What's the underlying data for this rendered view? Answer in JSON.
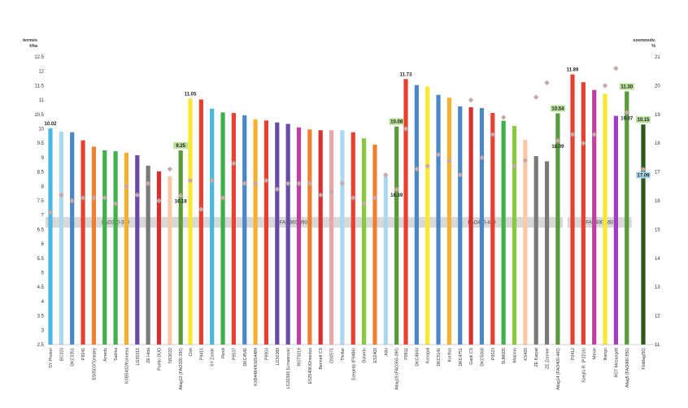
{
  "chart_data": {
    "type": "bar",
    "left_axis": {
      "title_line1": "termés",
      "title_line2": "t/ha",
      "min": 2.5,
      "max": 12.5,
      "step": 0.5
    },
    "right_axis": {
      "title_line1": "szemnedv.",
      "title_line2": "%",
      "min": 11,
      "max": 21,
      "step": 1
    },
    "grid": false,
    "groups": [
      {
        "label": "FAO320-350",
        "categories": [
          "SY Photon",
          "BC323",
          "DKC3351",
          "P9241",
          "ES0503/Tonedey",
          "Anredo",
          "Sabika",
          "KXB5432/Konnesa",
          "LG30315",
          "ZE Hida",
          "Portilo DUO",
          "NS3022",
          "Átlag12 (FAO320-350)"
        ]
      },
      {
        "label": "FAO360-390",
        "categories": [
          "Clok",
          "P9415",
          "SY Zondir",
          "Resili",
          "P9537",
          "DKC4541",
          "KXB4484/KWS4484",
          "P9903",
          "LG30389",
          "LG30369 (Limasrous)",
          "RGT5019",
          "ES2540K/Omentos",
          "Bennett CS",
          "DS0571",
          "Thriller",
          "Szegedy (P9486)",
          "Doberto",
          "ES2409",
          "Alibi",
          "Átlag19 (FAO360-390)"
        ]
      },
      {
        "label": "FAO400-460",
        "categories": [
          "P9911",
          "DKC4943",
          "Konagal",
          "DKC5141",
          "Konflos",
          "DKC4751",
          "Gasti CS",
          "DKC5068",
          "P0023",
          "SUM005",
          "Malomo",
          "KS420",
          "ZE Karpat",
          "ZE Zoomer",
          "Átlag14 (FAO400-460)"
        ]
      },
      {
        "label": "FAO490-550",
        "categories": [
          "P0412",
          "Szegfu R. (P2216)",
          "Mexie",
          "Illango",
          "RGT Mezangett",
          "Átlag5 (FAO490-550)"
        ]
      },
      {
        "label": "",
        "categories": [
          "Főátlag(50)"
        ]
      }
    ],
    "series": [
      {
        "axis": "left",
        "values": [
          [
            10.02,
            9.9,
            9.88,
            9.6,
            9.38,
            9.25,
            9.22,
            9.17,
            9.08,
            8.72,
            8.52,
            8.35,
            9.25
          ],
          [
            11.05,
            11.02,
            10.7,
            10.57,
            10.55,
            10.47,
            10.33,
            10.29,
            10.22,
            10.17,
            10.05,
            9.98,
            9.95,
            9.95,
            9.95,
            9.88,
            9.67,
            9.45,
            8.35,
            10.08
          ],
          [
            11.73,
            11.52,
            11.47,
            11.18,
            11.08,
            10.78,
            10.75,
            10.72,
            10.55,
            10.28,
            10.1,
            9.62,
            9.05,
            8.87,
            10.54
          ],
          [
            11.89,
            11.62,
            11.35,
            11.22,
            10.45,
            11.3
          ],
          [
            10.15
          ]
        ],
        "colors": [
          [
            "#4db8e6",
            "#aad8ee",
            "#4a86c8",
            "#e84030",
            "#f08030",
            "#3fb04a",
            "#3fb04a",
            "#f8b030",
            "#6a4aa8",
            "#7a7a7a",
            "#d83030",
            "#f8c8a8",
            "#5a9a3a"
          ],
          [
            "#f8e830",
            "#e84030",
            "#4ab8d8",
            "#3fb04a",
            "#e84030",
            "#4a86c8",
            "#f8b030",
            "#e84030",
            "#6a4aa8",
            "#6a4aa8",
            "#c040a0",
            "#f08030",
            "#d83030",
            "#e8a8a8",
            "#aad8ee",
            "#e84030",
            "#8ac840",
            "#f08030",
            "#aad8ee",
            "#5a9a3a"
          ],
          [
            "#e84030",
            "#4a86c8",
            "#f8e830",
            "#4a86c8",
            "#f8b030",
            "#4a86c8",
            "#d83030",
            "#4a86c8",
            "#e84030",
            "#3fb04a",
            "#8ac840",
            "#f8c8a8",
            "#7a7a7a",
            "#7a7a7a",
            "#5a9a3a"
          ],
          [
            "#e84030",
            "#e84030",
            "#c040a0",
            "#f8e830",
            "#a040c0",
            "#5a9a3a"
          ],
          [
            "#2a5a1a"
          ]
        ]
      },
      {
        "axis": "right",
        "marker": "diamond",
        "marker_color": "#c8a8a8",
        "values": [
          [
            15.6,
            16.2,
            16.0,
            16.1,
            16.1,
            16.1,
            15.9,
            16.5,
            16.2,
            16.6,
            16.0,
            17.1,
            16.18
          ],
          [
            16.7,
            15.7,
            16.7,
            16.1,
            17.3,
            16.6,
            16.6,
            16.7,
            16.4,
            16.6,
            16.6,
            16.6,
            16.2,
            16.3,
            16.6,
            16.1,
            15.9,
            16.1,
            16.9,
            16.39
          ],
          [
            18.5,
            17.1,
            17.2,
            17.6,
            17.4,
            16.9,
            19.5,
            17.5,
            18.3,
            18.9,
            17.2,
            17.4,
            19.6,
            20.1,
            18.09
          ],
          [
            18.3,
            18.0,
            18.3,
            20.0,
            20.6,
            19.07
          ],
          [
            17.09
          ]
        ]
      }
    ],
    "bar_value_labels": [
      {
        "category": "SY Photon",
        "text": "10.02"
      },
      {
        "category": "Átlag12 (FAO320-350)",
        "text": "9.25",
        "highlight": true
      },
      {
        "category": "Clok",
        "text": "11.05"
      },
      {
        "category": "Átlag19 (FAO360-390)",
        "text": "10.08",
        "highlight": true
      },
      {
        "category": "P9911",
        "text": "11.73"
      },
      {
        "category": "Átlag14 (FAO400-460)",
        "text": "10.54",
        "highlight": true
      },
      {
        "category": "P0412",
        "text": "11.89"
      },
      {
        "category": "Átlag5 (FAO490-550)",
        "text": "11.30",
        "highlight": true
      },
      {
        "category": "Főátlag(50)",
        "text": "10.15",
        "highlight": true
      }
    ],
    "moisture_value_labels": [
      {
        "category": "Átlag12 (FAO320-350)",
        "text": "16.18"
      },
      {
        "category": "Átlag19 (FAO360-390)",
        "text": "16.39"
      },
      {
        "category": "Átlag14 (FAO400-460)",
        "text": "18.09"
      },
      {
        "category": "Átlag5 (FAO490-550)",
        "text": "19.07"
      },
      {
        "category": "Főátlag(50)",
        "text": "17.09",
        "highlight": true
      }
    ]
  }
}
